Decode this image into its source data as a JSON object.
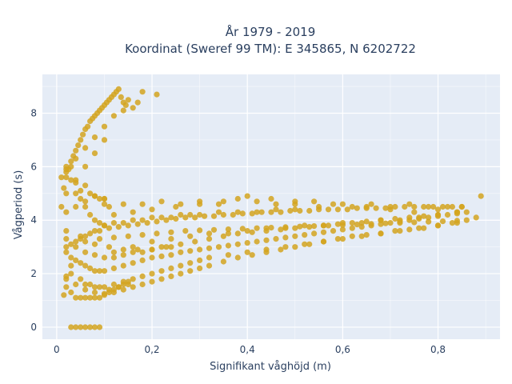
{
  "chart_data": {
    "type": "scatter",
    "title_line1": "År 1979 - 2019",
    "title_line2": "Koordinat (Sweref 99 TM): E 345865, N 6202722",
    "xlabel": "Signifikant våghöjd (m)",
    "ylabel": "Vågperiod (s)",
    "xlim": [
      -0.03,
      0.93
    ],
    "ylim": [
      -0.45,
      9.45
    ],
    "xticks": [
      0,
      0.2,
      0.4,
      0.6,
      0.8
    ],
    "xtick_labels": [
      "0",
      "0,2",
      "0,4",
      "0,6",
      "0,8"
    ],
    "yticks": [
      0,
      2,
      4,
      6,
      8
    ],
    "ytick_labels": [
      "0",
      "2",
      "4",
      "6",
      "8"
    ],
    "grid": true,
    "marker_color": "#d4a520",
    "plot_background": "#e5ecf6",
    "grid_color": "#ffffff",
    "series": [
      {
        "x": [
          0.03,
          0.04,
          0.05,
          0.06,
          0.07,
          0.08,
          0.09,
          0.015,
          0.02,
          0.02,
          0.03,
          0.03,
          0.04,
          0.05,
          0.06,
          0.07,
          0.08,
          0.09,
          0.1,
          0.11,
          0.12,
          0.13,
          0.14,
          0.15,
          0.02,
          0.03,
          0.04,
          0.05,
          0.06,
          0.07,
          0.08,
          0.09,
          0.1,
          0.12,
          0.14,
          0.16,
          0.18,
          0.2,
          0.22,
          0.24,
          0.26,
          0.28,
          0.3,
          0.32,
          0.34,
          0.36,
          0.38,
          0.4,
          0.42,
          0.44,
          0.46,
          0.48,
          0.5,
          0.52,
          0.54,
          0.56,
          0.58,
          0.6,
          0.62,
          0.64,
          0.66,
          0.68,
          0.7,
          0.72,
          0.74,
          0.76,
          0.78,
          0.8,
          0.82,
          0.84,
          0.86,
          0.89,
          0.05,
          0.07,
          0.09,
          0.11,
          0.13,
          0.15,
          0.17,
          0.19,
          0.21,
          0.23,
          0.25,
          0.27,
          0.29,
          0.31,
          0.33,
          0.35,
          0.37,
          0.39,
          0.41,
          0.43,
          0.45,
          0.47,
          0.49,
          0.51,
          0.53,
          0.55,
          0.57,
          0.59,
          0.61,
          0.63,
          0.65,
          0.67,
          0.69,
          0.71,
          0.73,
          0.75,
          0.77,
          0.79,
          0.81,
          0.83,
          0.85,
          0.1,
          0.14,
          0.18,
          0.22,
          0.26,
          0.3,
          0.34,
          0.38,
          0.42,
          0.46,
          0.5,
          0.54,
          0.58,
          0.62,
          0.66,
          0.7,
          0.74,
          0.78,
          0.82,
          0.06,
          0.08,
          0.1,
          0.12,
          0.14,
          0.16,
          0.18,
          0.2,
          0.22,
          0.24,
          0.26,
          0.28,
          0.3,
          0.32,
          0.36,
          0.4,
          0.44,
          0.48,
          0.52,
          0.56,
          0.6,
          0.64,
          0.68,
          0.72,
          0.76,
          0.8,
          0.84,
          0.86,
          0.88,
          0.12,
          0.16,
          0.2,
          0.24,
          0.28,
          0.32,
          0.36,
          0.4,
          0.44,
          0.48,
          0.52,
          0.56,
          0.6,
          0.64,
          0.68,
          0.72,
          0.76,
          0.8,
          0.84,
          0.02,
          0.04,
          0.06,
          0.08,
          0.1,
          0.12,
          0.14,
          0.16,
          0.18,
          0.2,
          0.22,
          0.24,
          0.26,
          0.28,
          0.3,
          0.34,
          0.38,
          0.42,
          0.46,
          0.5,
          0.02,
          0.04,
          0.06,
          0.08,
          0.1,
          0.01,
          0.02,
          0.03,
          0.04,
          0.05,
          0.06,
          0.07,
          0.08,
          0.09,
          0.1,
          0.11,
          0.02,
          0.04,
          0.06,
          0.08,
          0.1,
          0.12,
          0.14,
          0.16,
          0.18,
          0.2,
          0.22,
          0.24,
          0.26,
          0.28,
          0.3,
          0.32,
          0.35,
          0.38,
          0.41,
          0.44,
          0.47,
          0.5,
          0.53,
          0.56,
          0.59,
          0.62,
          0.65,
          0.68,
          0.71,
          0.74,
          0.77,
          0.8,
          0.83,
          0.02,
          0.05,
          0.08,
          0.11,
          0.14,
          0.17,
          0.2,
          0.23,
          0.26,
          0.29,
          0.32,
          0.35,
          0.38,
          0.41,
          0.44,
          0.47,
          0.5,
          0.53,
          0.56,
          0.59,
          0.62,
          0.65,
          0.68,
          0.71,
          0.74,
          0.77,
          0.8,
          0.84,
          0.12,
          0.16,
          0.2,
          0.25,
          0.3,
          0.35,
          0.4,
          0.45,
          0.5,
          0.55,
          0.6,
          0.65,
          0.7,
          0.75,
          0.8,
          0.85,
          0.02,
          0.03,
          0.04,
          0.05,
          0.06,
          0.07,
          0.08,
          0.09,
          0.1,
          0.03,
          0.05,
          0.07,
          0.09,
          0.11,
          0.13,
          0.15,
          0.02,
          0.04,
          0.06,
          0.08,
          0.1,
          0.12,
          0.14,
          0.16,
          0.18,
          0.2,
          0.22,
          0.24,
          0.01,
          0.015,
          0.02,
          0.025,
          0.03,
          0.035,
          0.04,
          0.045,
          0.05,
          0.055,
          0.06,
          0.065,
          0.07,
          0.075,
          0.08,
          0.085,
          0.09,
          0.095,
          0.1,
          0.105,
          0.11,
          0.115,
          0.12,
          0.125,
          0.13,
          0.135,
          0.14,
          0.145,
          0.15,
          0.16,
          0.17,
          0.18,
          0.21,
          0.02,
          0.04,
          0.06,
          0.08,
          0.1,
          0.12,
          0.14,
          0.02,
          0.04,
          0.06,
          0.08,
          0.1,
          0.03,
          0.06,
          0.09,
          0.12,
          0.15,
          0.18,
          0.21,
          0.24,
          0.27,
          0.3,
          0.33,
          0.36,
          0.39,
          0.42,
          0.45,
          0.48,
          0.51,
          0.54,
          0.57,
          0.6,
          0.63,
          0.66,
          0.69,
          0.72,
          0.75,
          0.78,
          0.81,
          0.84
        ],
        "y": [
          0,
          0,
          0,
          0,
          0,
          0,
          0,
          1.2,
          1.5,
          1.9,
          2.3,
          1.3,
          1.1,
          1.1,
          1.1,
          1.1,
          1.1,
          1.1,
          1.2,
          1.3,
          1.4,
          1.5,
          1.6,
          1.7,
          2.8,
          2.6,
          2.5,
          2.4,
          2.3,
          2.2,
          2.1,
          2.1,
          2.1,
          2.2,
          2.3,
          2.4,
          2.5,
          2.6,
          2.65,
          2.7,
          2.8,
          2.85,
          2.9,
          2.95,
          3.0,
          3.05,
          3.1,
          3.15,
          3.2,
          3.25,
          3.3,
          3.35,
          3.4,
          3.45,
          3.5,
          3.55,
          3.6,
          3.65,
          3.7,
          3.75,
          3.8,
          3.85,
          3.9,
          3.95,
          4.0,
          4.05,
          4.1,
          4.15,
          4.2,
          4.25,
          4.3,
          4.9,
          3.4,
          3.5,
          3.6,
          3.7,
          3.75,
          3.8,
          3.85,
          3.9,
          3.95,
          4.0,
          4.05,
          4.1,
          4.1,
          4.15,
          4.15,
          4.2,
          4.2,
          4.25,
          4.25,
          4.3,
          4.3,
          4.3,
          4.35,
          4.35,
          4.35,
          4.4,
          4.4,
          4.4,
          4.4,
          4.45,
          4.45,
          4.45,
          4.45,
          4.5,
          4.5,
          4.5,
          4.5,
          4.5,
          4.5,
          4.5,
          4.5,
          4.8,
          4.6,
          4.6,
          4.7,
          4.6,
          4.7,
          4.6,
          4.8,
          4.7,
          4.6,
          4.6,
          4.7,
          4.6,
          4.5,
          4.6,
          4.5,
          4.6,
          4.5,
          4.5,
          1.6,
          1.5,
          1.5,
          1.6,
          1.7,
          1.8,
          1.9,
          2.0,
          2.1,
          2.2,
          2.3,
          2.4,
          2.5,
          2.6,
          2.7,
          2.8,
          2.9,
          3.0,
          3.1,
          3.2,
          3.3,
          3.4,
          3.5,
          3.6,
          3.7,
          3.8,
          3.9,
          4.0,
          4.1,
          2.8,
          3.0,
          3.2,
          3.3,
          3.4,
          3.5,
          3.5,
          3.6,
          3.7,
          3.7,
          3.8,
          3.8,
          3.9,
          3.9,
          4.0,
          4.0,
          4.1,
          4.2,
          4.3,
          3.0,
          3.2,
          3.4,
          3.6,
          3.8,
          3.9,
          3.9,
          4.0,
          4.0,
          4.1,
          4.1,
          4.1,
          4.2,
          4.2,
          4.2,
          4.3,
          4.3,
          4.3,
          4.4,
          4.4,
          4.3,
          4.5,
          4.7,
          4.9,
          4.8,
          5.6,
          5.8,
          6.0,
          5.4,
          5.1,
          5.3,
          5.0,
          4.9,
          4.8,
          4.6,
          4.5,
          1.8,
          1.6,
          1.4,
          1.3,
          1.25,
          1.3,
          1.4,
          1.5,
          1.6,
          1.7,
          1.8,
          1.9,
          2.0,
          2.1,
          2.2,
          2.3,
          2.45,
          2.6,
          2.7,
          2.8,
          2.9,
          3.0,
          3.1,
          3.2,
          3.3,
          3.4,
          3.45,
          3.5,
          3.6,
          3.65,
          3.7,
          3.8,
          3.9,
          3.6,
          3.3,
          3.1,
          3.0,
          2.9,
          2.9,
          2.9,
          3.0,
          3.1,
          3.2,
          3.3,
          3.4,
          3.5,
          3.55,
          3.6,
          3.65,
          3.7,
          3.75,
          3.8,
          3.85,
          3.9,
          3.95,
          4.0,
          4.05,
          4.1,
          4.15,
          4.2,
          4.3,
          4.2,
          4.3,
          4.4,
          4.5,
          4.6,
          4.7,
          4.9,
          4.8,
          4.7,
          4.5,
          4.6,
          4.5,
          4.4,
          4.3,
          4.4,
          4.5,
          6.0,
          5.5,
          5.0,
          4.8,
          4.5,
          4.2,
          4.0,
          3.9,
          3.8,
          2.0,
          1.8,
          1.6,
          1.5,
          1.4,
          1.5,
          1.6,
          3.3,
          3.0,
          2.8,
          2.7,
          2.6,
          2.6,
          2.7,
          2.8,
          2.8,
          2.9,
          3.0,
          3.0,
          4.5,
          5.2,
          5.6,
          5.9,
          6.2,
          6.4,
          6.6,
          6.8,
          7.0,
          7.2,
          7.4,
          7.5,
          7.7,
          7.8,
          7.9,
          8.0,
          8.1,
          8.2,
          8.3,
          8.4,
          8.5,
          8.6,
          8.7,
          8.8,
          8.9,
          8.6,
          8.4,
          8.3,
          8.5,
          8.2,
          8.4,
          8.8,
          8.7,
          5.9,
          6.3,
          6.7,
          7.1,
          7.5,
          7.9,
          8.1,
          5.0,
          5.5,
          6.0,
          6.5,
          7.0,
          3.1,
          3.2,
          3.3,
          3.35,
          3.4,
          3.45,
          3.5,
          3.55,
          3.6,
          3.62,
          3.64,
          3.66,
          3.68,
          3.7,
          3.72,
          3.74,
          3.76,
          3.78,
          3.8,
          3.82,
          3.84,
          3.86,
          3.88,
          3.9,
          3.92,
          3.94,
          3.96,
          3.98
        ]
      }
    ]
  }
}
